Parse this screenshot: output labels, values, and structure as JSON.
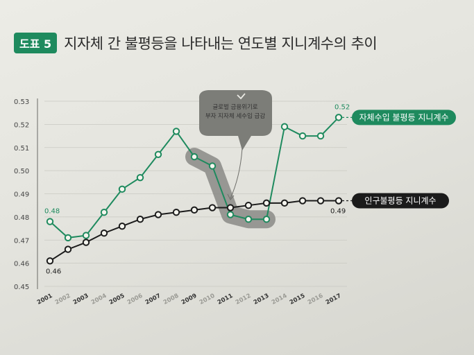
{
  "header": {
    "badge": "도표 5",
    "title": "지자체 간 불평등을 나타내는 연도별 지니계수의 추이"
  },
  "colors": {
    "green": "#1e8a5e",
    "dark": "#1b1b1b",
    "highlight": "#8a8a86"
  },
  "chart_data": {
    "type": "line",
    "x": [
      2001,
      2002,
      2003,
      2004,
      2005,
      2006,
      2007,
      2008,
      2009,
      2010,
      2011,
      2012,
      2013,
      2014,
      2015,
      2016,
      2017
    ],
    "x_tick_labels": [
      "2001",
      "2002",
      "2003",
      "2004",
      "2005",
      "2006",
      "2007",
      "2008",
      "2009",
      "2010",
      "2011",
      "2012",
      "2013",
      "2014",
      "2015",
      "2016",
      "2017"
    ],
    "ylim": [
      0.45,
      0.53
    ],
    "y_ticks": [
      "0.45",
      "0.46",
      "0.47",
      "0.48",
      "0.49",
      "0.50",
      "0.51",
      "0.52",
      "0.53"
    ],
    "series": [
      {
        "name": "자체수입 불평등 지니계수",
        "color": "#1e8a5e",
        "values": [
          0.478,
          0.471,
          0.472,
          0.482,
          0.492,
          0.497,
          0.507,
          0.517,
          0.506,
          0.502,
          0.481,
          0.479,
          0.479,
          0.519,
          0.515,
          0.515,
          0.523
        ]
      },
      {
        "name": "인구불평등 지니계수",
        "color": "#1b1b1b",
        "values": [
          0.461,
          0.466,
          0.469,
          0.473,
          0.476,
          0.479,
          0.481,
          0.482,
          0.483,
          0.484,
          0.484,
          0.485,
          0.486,
          0.486,
          0.487,
          0.487,
          0.487
        ]
      }
    ],
    "data_labels": [
      {
        "text": "0.48",
        "series": 0,
        "index": 0
      },
      {
        "text": "0.52",
        "series": 0,
        "index": 16
      },
      {
        "text": "0.46",
        "series": 1,
        "index": 0
      },
      {
        "text": "0.49",
        "series": 1,
        "index": 16
      }
    ],
    "annotation": {
      "lines": [
        "글로벌 금융위기로",
        "부자 지자체 세수입 급감"
      ],
      "highlight_years": [
        2010,
        2013
      ]
    },
    "grid": true,
    "legend": "right, inline labels at line ends"
  }
}
